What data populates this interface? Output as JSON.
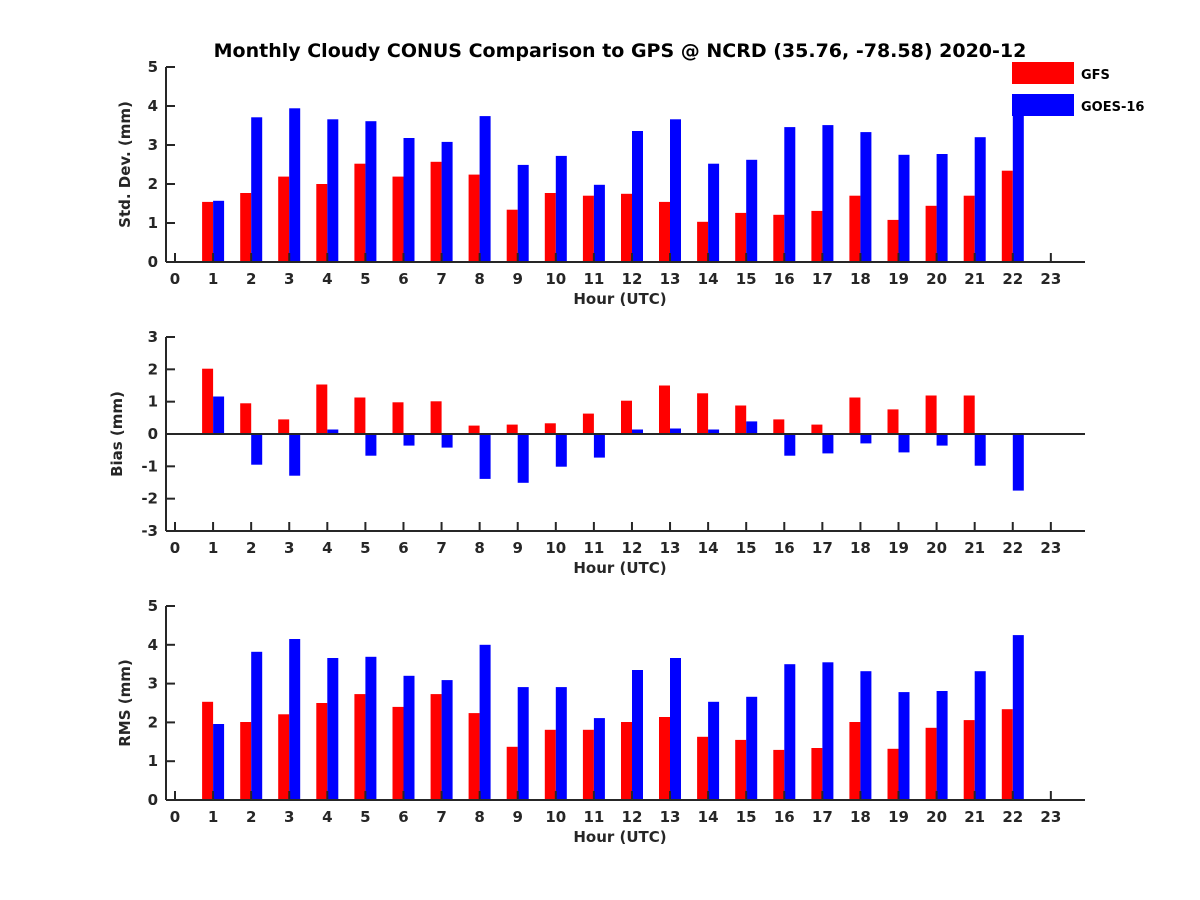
{
  "chart_data": [
    {
      "type": "bar",
      "title": "Monthly Cloudy CONUS Comparison to GPS @ NCRD (35.76, -78.58) 2020-12",
      "xlabel": "Hour (UTC)",
      "ylabel": "Std. Dev. (mm)",
      "ylim": [
        0,
        5
      ],
      "yticks": [
        0,
        1,
        2,
        3,
        4,
        5
      ],
      "xlim": [
        -0.5,
        23.9
      ],
      "categories": [
        0,
        1,
        2,
        3,
        4,
        5,
        6,
        7,
        8,
        9,
        10,
        11,
        12,
        13,
        14,
        15,
        16,
        17,
        18,
        19,
        20,
        21,
        22,
        23
      ],
      "legend": "top-right",
      "series": [
        {
          "name": "GFS",
          "color": "#ff0000",
          "values": [
            null,
            1.54,
            1.77,
            2.19,
            2.0,
            2.52,
            2.19,
            2.57,
            2.24,
            1.34,
            1.77,
            1.7,
            1.75,
            1.54,
            1.03,
            1.26,
            1.21,
            1.31,
            1.7,
            1.08,
            1.44,
            1.7,
            2.34,
            null
          ]
        },
        {
          "name": "GOES-16",
          "color": "#0000ff",
          "values": [
            null,
            1.57,
            3.71,
            3.94,
            3.66,
            3.61,
            3.18,
            3.08,
            3.74,
            2.49,
            2.72,
            1.98,
            3.36,
            3.66,
            2.52,
            2.62,
            3.46,
            3.51,
            3.33,
            2.75,
            2.77,
            3.2,
            3.86,
            null
          ]
        }
      ]
    },
    {
      "type": "bar",
      "title": "",
      "xlabel": "Hour (UTC)",
      "ylabel": "Bias (mm)",
      "ylim": [
        -3,
        3
      ],
      "yticks": [
        -3,
        -2,
        -1,
        0,
        1,
        2,
        3
      ],
      "xlim": [
        -0.5,
        23.9
      ],
      "categories": [
        0,
        1,
        2,
        3,
        4,
        5,
        6,
        7,
        8,
        9,
        10,
        11,
        12,
        13,
        14,
        15,
        16,
        17,
        18,
        19,
        20,
        21,
        22,
        23
      ],
      "series": [
        {
          "name": "GFS",
          "color": "#ff0000",
          "values": [
            null,
            2.02,
            0.95,
            0.45,
            1.53,
            1.13,
            0.98,
            1.01,
            0.26,
            0.29,
            0.33,
            0.63,
            1.03,
            1.5,
            1.26,
            0.88,
            0.45,
            0.29,
            1.13,
            0.76,
            1.19,
            1.19,
            0.0,
            null
          ]
        },
        {
          "name": "GOES-16",
          "color": "#0000ff",
          "values": [
            null,
            1.16,
            -0.95,
            -1.29,
            0.14,
            -0.67,
            -0.36,
            -0.42,
            -1.39,
            -1.51,
            -1.01,
            -0.73,
            0.14,
            0.17,
            0.14,
            0.39,
            -0.67,
            -0.6,
            -0.29,
            -0.57,
            -0.36,
            -0.98,
            -1.75,
            null
          ]
        }
      ]
    },
    {
      "type": "bar",
      "title": "",
      "xlabel": "Hour (UTC)",
      "ylabel": "RMS (mm)",
      "ylim": [
        0,
        5
      ],
      "yticks": [
        0,
        1,
        2,
        3,
        4,
        5
      ],
      "xlim": [
        -0.5,
        23.9
      ],
      "categories": [
        0,
        1,
        2,
        3,
        4,
        5,
        6,
        7,
        8,
        9,
        10,
        11,
        12,
        13,
        14,
        15,
        16,
        17,
        18,
        19,
        20,
        21,
        22,
        23
      ],
      "series": [
        {
          "name": "GFS",
          "color": "#ff0000",
          "values": [
            null,
            2.53,
            2.01,
            2.21,
            2.5,
            2.73,
            2.4,
            2.73,
            2.24,
            1.37,
            1.81,
            1.81,
            2.01,
            2.14,
            1.63,
            1.55,
            1.29,
            1.34,
            2.01,
            1.32,
            1.86,
            2.06,
            2.34,
            null
          ]
        },
        {
          "name": "GOES-16",
          "color": "#0000ff",
          "values": [
            null,
            1.96,
            3.82,
            4.15,
            3.66,
            3.69,
            3.2,
            3.09,
            4.0,
            2.91,
            2.91,
            2.11,
            3.35,
            3.66,
            2.53,
            2.66,
            3.5,
            3.55,
            3.32,
            2.78,
            2.81,
            3.32,
            4.25,
            null
          ]
        }
      ]
    }
  ]
}
